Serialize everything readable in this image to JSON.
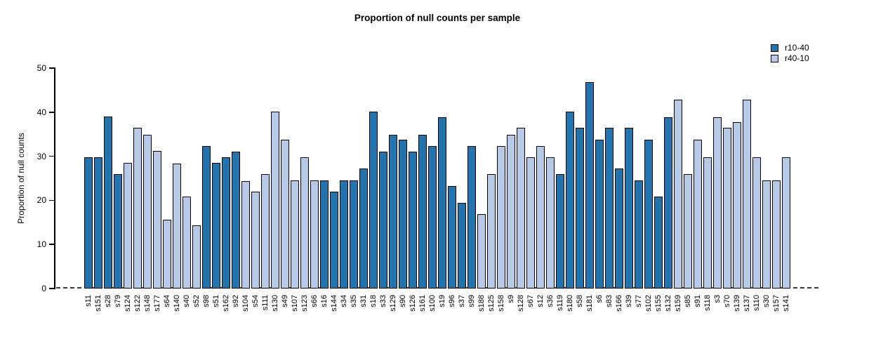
{
  "chart_data": {
    "type": "bar",
    "title": "Proportion of null counts per sample",
    "xlabel": "",
    "ylabel": "Proportion of null counts",
    "ylim": [
      0,
      50
    ],
    "yticks": [
      0,
      10,
      20,
      30,
      40,
      50
    ],
    "grid": false,
    "zero_line_style": "dashed",
    "bar_border_color": "#000000",
    "legend": {
      "position": "top-right",
      "entries": [
        {
          "name": "r10-40",
          "color": "#2274ae"
        },
        {
          "name": "r40-10",
          "color": "#b6c9e6"
        }
      ]
    },
    "bars": [
      {
        "label": "s11",
        "value": 29.8,
        "series": "r10-40"
      },
      {
        "label": "s151",
        "value": 29.8,
        "series": "r10-40"
      },
      {
        "label": "s28",
        "value": 39.0,
        "series": "r10-40"
      },
      {
        "label": "s79",
        "value": 25.9,
        "series": "r10-40"
      },
      {
        "label": "s124",
        "value": 28.5,
        "series": "r40-10"
      },
      {
        "label": "s122",
        "value": 36.4,
        "series": "r40-10"
      },
      {
        "label": "s148",
        "value": 34.9,
        "series": "r40-10"
      },
      {
        "label": "s177",
        "value": 31.2,
        "series": "r40-10"
      },
      {
        "label": "s64",
        "value": 15.6,
        "series": "r40-10"
      },
      {
        "label": "s140",
        "value": 28.4,
        "series": "r40-10"
      },
      {
        "label": "s40",
        "value": 20.8,
        "series": "r40-10"
      },
      {
        "label": "s52",
        "value": 14.3,
        "series": "r40-10"
      },
      {
        "label": "s98",
        "value": 32.4,
        "series": "r10-40"
      },
      {
        "label": "s51",
        "value": 28.5,
        "series": "r10-40"
      },
      {
        "label": "s162",
        "value": 29.8,
        "series": "r10-40"
      },
      {
        "label": "s92",
        "value": 31.1,
        "series": "r10-40"
      },
      {
        "label": "s104",
        "value": 24.4,
        "series": "r40-10"
      },
      {
        "label": "s54",
        "value": 22.0,
        "series": "r40-10"
      },
      {
        "label": "s111",
        "value": 26.0,
        "series": "r40-10"
      },
      {
        "label": "s130",
        "value": 40.2,
        "series": "r40-10"
      },
      {
        "label": "s49",
        "value": 33.7,
        "series": "r40-10"
      },
      {
        "label": "s107",
        "value": 24.5,
        "series": "r40-10"
      },
      {
        "label": "s123",
        "value": 29.8,
        "series": "r40-10"
      },
      {
        "label": "s66",
        "value": 24.5,
        "series": "r40-10"
      },
      {
        "label": "s16",
        "value": 24.5,
        "series": "r10-40"
      },
      {
        "label": "s144",
        "value": 22.0,
        "series": "r10-40"
      },
      {
        "label": "s34",
        "value": 24.5,
        "series": "r10-40"
      },
      {
        "label": "s35",
        "value": 24.5,
        "series": "r10-40"
      },
      {
        "label": "s31",
        "value": 27.2,
        "series": "r10-40"
      },
      {
        "label": "s18",
        "value": 40.2,
        "series": "r10-40"
      },
      {
        "label": "s33",
        "value": 31.1,
        "series": "r10-40"
      },
      {
        "label": "s129",
        "value": 34.9,
        "series": "r10-40"
      },
      {
        "label": "s90",
        "value": 33.7,
        "series": "r10-40"
      },
      {
        "label": "s126",
        "value": 31.1,
        "series": "r10-40"
      },
      {
        "label": "s161",
        "value": 34.9,
        "series": "r10-40"
      },
      {
        "label": "s100",
        "value": 32.4,
        "series": "r10-40"
      },
      {
        "label": "s19",
        "value": 38.9,
        "series": "r10-40"
      },
      {
        "label": "s96",
        "value": 23.3,
        "series": "r10-40"
      },
      {
        "label": "s37",
        "value": 19.5,
        "series": "r10-40"
      },
      {
        "label": "s99",
        "value": 32.4,
        "series": "r10-40"
      },
      {
        "label": "s188",
        "value": 16.8,
        "series": "r40-10"
      },
      {
        "label": "s125",
        "value": 25.9,
        "series": "r40-10"
      },
      {
        "label": "s158",
        "value": 32.4,
        "series": "r40-10"
      },
      {
        "label": "s9",
        "value": 34.9,
        "series": "r40-10"
      },
      {
        "label": "s128",
        "value": 36.4,
        "series": "r40-10"
      },
      {
        "label": "s67",
        "value": 29.8,
        "series": "r40-10"
      },
      {
        "label": "s12",
        "value": 32.4,
        "series": "r40-10"
      },
      {
        "label": "s36",
        "value": 29.8,
        "series": "r40-10"
      },
      {
        "label": "s119",
        "value": 25.9,
        "series": "r10-40"
      },
      {
        "label": "s180",
        "value": 40.2,
        "series": "r10-40"
      },
      {
        "label": "s58",
        "value": 36.4,
        "series": "r10-40"
      },
      {
        "label": "s181",
        "value": 46.8,
        "series": "r10-40"
      },
      {
        "label": "s6",
        "value": 33.7,
        "series": "r10-40"
      },
      {
        "label": "s83",
        "value": 36.4,
        "series": "r10-40"
      },
      {
        "label": "s166",
        "value": 27.2,
        "series": "r10-40"
      },
      {
        "label": "s39",
        "value": 36.4,
        "series": "r10-40"
      },
      {
        "label": "s77",
        "value": 24.5,
        "series": "r10-40"
      },
      {
        "label": "s102",
        "value": 33.7,
        "series": "r10-40"
      },
      {
        "label": "s155",
        "value": 20.8,
        "series": "r10-40"
      },
      {
        "label": "s132",
        "value": 38.9,
        "series": "r10-40"
      },
      {
        "label": "s159",
        "value": 42.8,
        "series": "r40-10"
      },
      {
        "label": "s85",
        "value": 25.9,
        "series": "r40-10"
      },
      {
        "label": "s91",
        "value": 33.7,
        "series": "r40-10"
      },
      {
        "label": "s118",
        "value": 29.8,
        "series": "r40-10"
      },
      {
        "label": "s3",
        "value": 38.9,
        "series": "r40-10"
      },
      {
        "label": "s70",
        "value": 36.4,
        "series": "r40-10"
      },
      {
        "label": "s139",
        "value": 37.7,
        "series": "r40-10"
      },
      {
        "label": "s137",
        "value": 42.8,
        "series": "r40-10"
      },
      {
        "label": "s110",
        "value": 29.8,
        "series": "r40-10"
      },
      {
        "label": "s30",
        "value": 24.5,
        "series": "r40-10"
      },
      {
        "label": "s157",
        "value": 24.5,
        "series": "r40-10"
      },
      {
        "label": "s141",
        "value": 29.8,
        "series": "r40-10"
      }
    ]
  }
}
